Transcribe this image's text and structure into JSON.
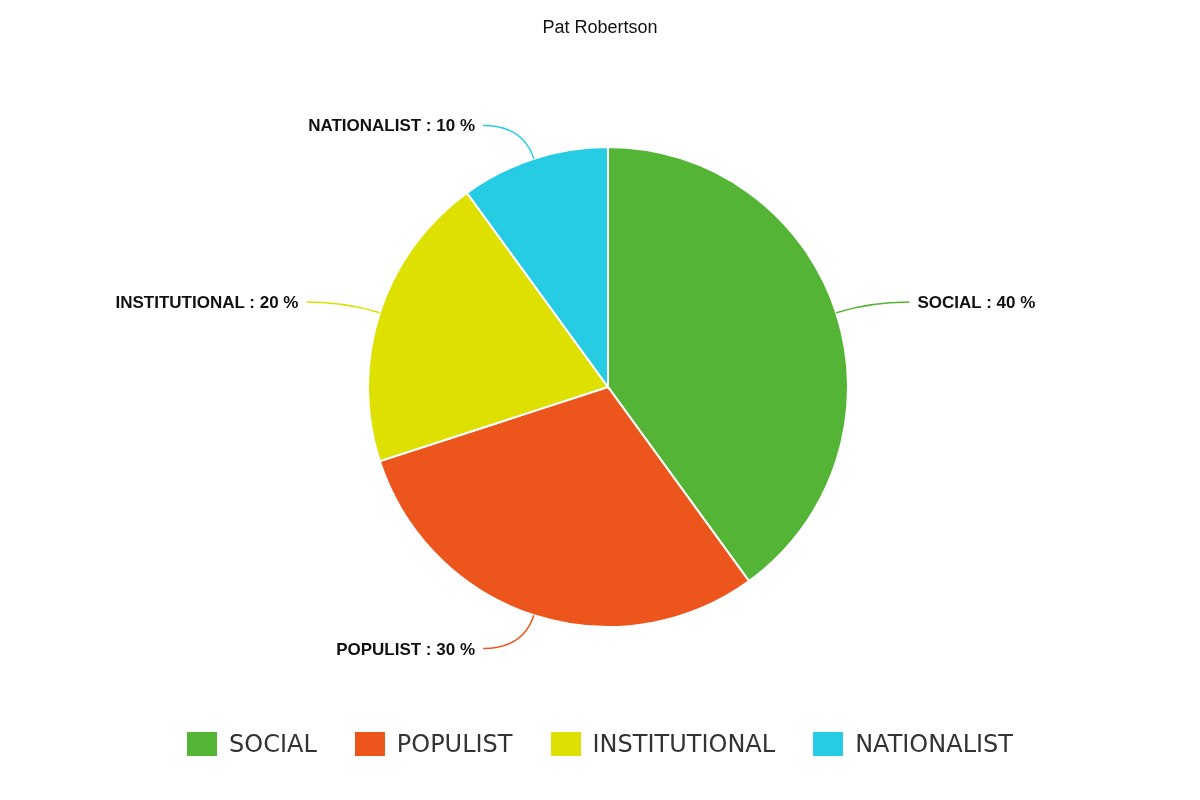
{
  "chart_data": {
    "type": "pie",
    "title": "Pat Robertson",
    "categories": [
      "SOCIAL",
      "POPULIST",
      "INSTITUTIONAL",
      "NATIONALIST"
    ],
    "values": [
      40,
      30,
      20,
      10
    ],
    "colors": [
      "#54b435",
      "#ec561d",
      "#dde000",
      "#25cce4"
    ],
    "value_labels": [
      "SOCIAL : 40 %",
      "POPULIST : 30 %",
      "INSTITUTIONAL : 20 %",
      "NATIONALIST : 10 %"
    ],
    "legend": "bottom"
  }
}
